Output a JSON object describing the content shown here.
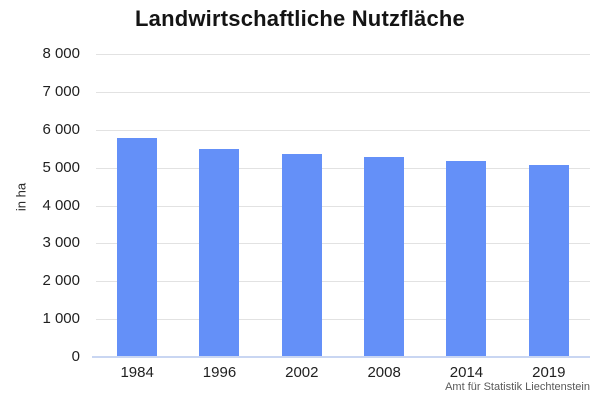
{
  "title": "Landwirtschaftliche Nutzfläche",
  "source": "Amt für Statistik Liechtenstein",
  "colors": {
    "bar": "#6490f8",
    "grid": "#e2e2e2",
    "baseline": "#c9d6f2",
    "title_text": "#141414",
    "tick_text": "#1f1f1f",
    "source_text": "#595959"
  },
  "chart_data": {
    "type": "bar",
    "title": "Landwirtschaftliche Nutzfläche",
    "categories": [
      "1984",
      "1996",
      "2002",
      "2008",
      "2014",
      "2019"
    ],
    "values": [
      5778,
      5487,
      5354,
      5275,
      5169,
      5071
    ],
    "xlabel": "",
    "ylabel": "in ha",
    "ylim": [
      0,
      8000
    ],
    "ytick_step": 1000,
    "ytick_labels": [
      "0",
      "1 000",
      "2 000",
      "3 000",
      "4 000",
      "5 000",
      "6 000",
      "7 000",
      "8 000"
    ],
    "grid": true,
    "legend": false,
    "bar_color": "#6490f8",
    "source": "Amt für Statistik Liechtenstein"
  }
}
